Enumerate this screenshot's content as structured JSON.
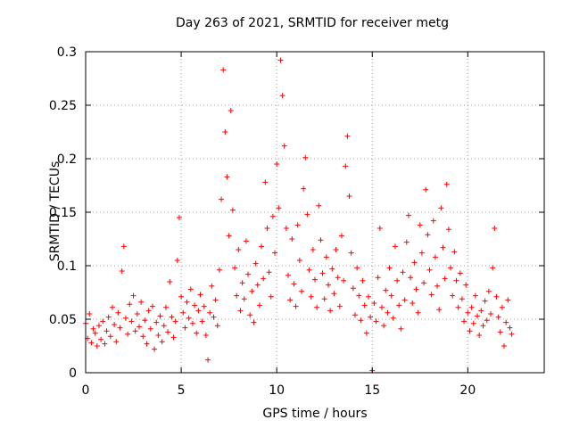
{
  "chart_data": {
    "type": "scatter",
    "title": "Day 263 of 2021, SRMTID for receiver metg",
    "xlabel": "GPS time / hours",
    "ylabel": "SRMTID / TECUs",
    "xlim": [
      0,
      24
    ],
    "ylim": [
      0,
      0.3
    ],
    "x_ticks": [
      0,
      5,
      10,
      15,
      20
    ],
    "x_tick_labels": [
      "0",
      "5",
      "10",
      "15",
      "20"
    ],
    "y_ticks": [
      0,
      0.05,
      0.1,
      0.15,
      0.2,
      0.25,
      0.3
    ],
    "y_tick_labels": [
      "0",
      "0.05",
      "0.1",
      "0.15",
      "0.2",
      "0.25",
      "0.3"
    ],
    "grid": true,
    "marker": "+",
    "color": "#ff0000",
    "series": [
      {
        "name": "SRMTID",
        "points": [
          [
            0.0,
            0.046
          ],
          [
            0.1,
            0.032
          ],
          [
            0.2,
            0.055
          ],
          [
            0.3,
            0.028
          ],
          [
            0.4,
            0.041
          ],
          [
            0.5,
            0.037
          ],
          [
            0.6,
            0.025
          ],
          [
            0.7,
            0.044
          ],
          [
            0.8,
            0.031
          ],
          [
            0.9,
            0.048
          ],
          [
            1.0,
            0.027
          ],
          [
            1.1,
            0.039
          ],
          [
            1.2,
            0.052
          ],
          [
            1.3,
            0.034
          ],
          [
            1.4,
            0.061
          ],
          [
            1.5,
            0.045
          ],
          [
            1.6,
            0.029
          ],
          [
            1.7,
            0.056
          ],
          [
            1.8,
            0.042
          ],
          [
            1.9,
            0.095
          ],
          [
            2.0,
            0.118
          ],
          [
            2.1,
            0.051
          ],
          [
            2.2,
            0.036
          ],
          [
            2.3,
            0.064
          ],
          [
            2.4,
            0.048
          ],
          [
            2.5,
            0.072
          ],
          [
            2.6,
            0.039
          ],
          [
            2.7,
            0.055
          ],
          [
            2.8,
            0.043
          ],
          [
            2.9,
            0.066
          ],
          [
            3.0,
            0.034
          ],
          [
            3.1,
            0.049
          ],
          [
            3.2,
            0.027
          ],
          [
            3.3,
            0.058
          ],
          [
            3.4,
            0.041
          ],
          [
            3.5,
            0.062
          ],
          [
            3.6,
            0.022
          ],
          [
            3.7,
            0.047
          ],
          [
            3.8,
            0.035
          ],
          [
            3.9,
            0.053
          ],
          [
            4.0,
            0.029
          ],
          [
            4.1,
            0.044
          ],
          [
            4.2,
            0.061
          ],
          [
            4.3,
            0.038
          ],
          [
            4.4,
            0.085
          ],
          [
            4.5,
            0.052
          ],
          [
            4.6,
            0.033
          ],
          [
            4.7,
            0.048
          ],
          [
            4.8,
            0.105
          ],
          [
            4.9,
            0.145
          ],
          [
            5.0,
            0.071
          ],
          [
            5.1,
            0.056
          ],
          [
            5.2,
            0.042
          ],
          [
            5.3,
            0.066
          ],
          [
            5.4,
            0.051
          ],
          [
            5.5,
            0.078
          ],
          [
            5.6,
            0.046
          ],
          [
            5.7,
            0.063
          ],
          [
            5.8,
            0.037
          ],
          [
            5.9,
            0.058
          ],
          [
            6.0,
            0.073
          ],
          [
            6.1,
            0.048
          ],
          [
            6.2,
            0.062
          ],
          [
            6.3,
            0.035
          ],
          [
            6.4,
            0.012
          ],
          [
            6.5,
            0.056
          ],
          [
            6.6,
            0.081
          ],
          [
            6.7,
            0.052
          ],
          [
            6.8,
            0.068
          ],
          [
            6.9,
            0.044
          ],
          [
            7.0,
            0.096
          ],
          [
            7.1,
            0.162
          ],
          [
            7.2,
            0.283
          ],
          [
            7.3,
            0.225
          ],
          [
            7.4,
            0.183
          ],
          [
            7.5,
            0.128
          ],
          [
            7.6,
            0.245
          ],
          [
            7.7,
            0.152
          ],
          [
            7.8,
            0.098
          ],
          [
            7.9,
            0.072
          ],
          [
            8.0,
            0.115
          ],
          [
            8.1,
            0.058
          ],
          [
            8.2,
            0.084
          ],
          [
            8.3,
            0.069
          ],
          [
            8.4,
            0.123
          ],
          [
            8.5,
            0.092
          ],
          [
            8.6,
            0.054
          ],
          [
            8.7,
            0.076
          ],
          [
            8.8,
            0.047
          ],
          [
            8.9,
            0.102
          ],
          [
            9.0,
            0.082
          ],
          [
            9.1,
            0.063
          ],
          [
            9.2,
            0.118
          ],
          [
            9.3,
            0.088
          ],
          [
            9.4,
            0.178
          ],
          [
            9.5,
            0.135
          ],
          [
            9.6,
            0.094
          ],
          [
            9.7,
            0.071
          ],
          [
            9.8,
            0.146
          ],
          [
            9.9,
            0.112
          ],
          [
            10.0,
            0.195
          ],
          [
            10.1,
            0.154
          ],
          [
            10.2,
            0.292
          ],
          [
            10.3,
            0.259
          ],
          [
            10.4,
            0.212
          ],
          [
            10.5,
            0.135
          ],
          [
            10.6,
            0.091
          ],
          [
            10.7,
            0.068
          ],
          [
            10.8,
            0.125
          ],
          [
            10.9,
            0.083
          ],
          [
            11.0,
            0.062
          ],
          [
            11.1,
            0.138
          ],
          [
            11.2,
            0.105
          ],
          [
            11.3,
            0.076
          ],
          [
            11.4,
            0.172
          ],
          [
            11.5,
            0.201
          ],
          [
            11.6,
            0.148
          ],
          [
            11.7,
            0.096
          ],
          [
            11.8,
            0.071
          ],
          [
            11.9,
            0.115
          ],
          [
            12.0,
            0.087
          ],
          [
            12.1,
            0.061
          ],
          [
            12.2,
            0.156
          ],
          [
            12.3,
            0.124
          ],
          [
            12.4,
            0.093
          ],
          [
            12.5,
            0.069
          ],
          [
            12.6,
            0.108
          ],
          [
            12.7,
            0.082
          ],
          [
            12.8,
            0.058
          ],
          [
            12.9,
            0.097
          ],
          [
            13.0,
            0.074
          ],
          [
            13.1,
            0.115
          ],
          [
            13.2,
            0.089
          ],
          [
            13.3,
            0.062
          ],
          [
            13.4,
            0.128
          ],
          [
            13.5,
            0.086
          ],
          [
            13.6,
            0.193
          ],
          [
            13.7,
            0.221
          ],
          [
            13.8,
            0.165
          ],
          [
            13.9,
            0.112
          ],
          [
            14.0,
            0.079
          ],
          [
            14.1,
            0.054
          ],
          [
            14.2,
            0.098
          ],
          [
            14.3,
            0.072
          ],
          [
            14.4,
            0.049
          ],
          [
            14.5,
            0.086
          ],
          [
            14.6,
            0.063
          ],
          [
            14.7,
            0.037
          ],
          [
            14.8,
            0.071
          ],
          [
            14.9,
            0.052
          ],
          [
            15.0,
            0.002
          ],
          [
            15.1,
            0.065
          ],
          [
            15.2,
            0.048
          ],
          [
            15.3,
            0.089
          ],
          [
            15.4,
            0.135
          ],
          [
            15.5,
            0.061
          ],
          [
            15.6,
            0.044
          ],
          [
            15.7,
            0.077
          ],
          [
            15.8,
            0.056
          ],
          [
            15.9,
            0.098
          ],
          [
            16.0,
            0.072
          ],
          [
            16.1,
            0.051
          ],
          [
            16.2,
            0.118
          ],
          [
            16.3,
            0.086
          ],
          [
            16.4,
            0.063
          ],
          [
            16.5,
            0.041
          ],
          [
            16.6,
            0.094
          ],
          [
            16.7,
            0.068
          ],
          [
            16.8,
            0.122
          ],
          [
            16.9,
            0.147
          ],
          [
            17.0,
            0.089
          ],
          [
            17.1,
            0.065
          ],
          [
            17.2,
            0.103
          ],
          [
            17.3,
            0.078
          ],
          [
            17.4,
            0.056
          ],
          [
            17.5,
            0.138
          ],
          [
            17.6,
            0.112
          ],
          [
            17.7,
            0.084
          ],
          [
            17.8,
            0.171
          ],
          [
            17.9,
            0.129
          ],
          [
            18.0,
            0.096
          ],
          [
            18.1,
            0.073
          ],
          [
            18.2,
            0.142
          ],
          [
            18.3,
            0.108
          ],
          [
            18.4,
            0.081
          ],
          [
            18.5,
            0.059
          ],
          [
            18.6,
            0.154
          ],
          [
            18.7,
            0.117
          ],
          [
            18.8,
            0.088
          ],
          [
            18.9,
            0.176
          ],
          [
            19.0,
            0.134
          ],
          [
            19.1,
            0.098
          ],
          [
            19.2,
            0.072
          ],
          [
            19.3,
            0.113
          ],
          [
            19.4,
            0.086
          ],
          [
            19.5,
            0.061
          ],
          [
            19.6,
            0.093
          ],
          [
            19.7,
            0.069
          ],
          [
            19.8,
            0.048
          ],
          [
            19.9,
            0.082
          ],
          [
            20.0,
            0.056
          ],
          [
            20.1,
            0.039
          ],
          [
            20.2,
            0.061
          ],
          [
            20.3,
            0.046
          ],
          [
            20.4,
            0.072
          ],
          [
            20.5,
            0.053
          ],
          [
            20.6,
            0.035
          ],
          [
            20.7,
            0.058
          ],
          [
            20.8,
            0.044
          ],
          [
            20.9,
            0.067
          ],
          [
            21.0,
            0.049
          ],
          [
            21.1,
            0.076
          ],
          [
            21.2,
            0.055
          ],
          [
            21.3,
            0.098
          ],
          [
            21.4,
            0.135
          ],
          [
            21.5,
            0.071
          ],
          [
            21.6,
            0.052
          ],
          [
            21.7,
            0.038
          ],
          [
            21.8,
            0.061
          ],
          [
            21.9,
            0.025
          ],
          [
            22.0,
            0.047
          ],
          [
            22.1,
            0.068
          ],
          [
            22.2,
            0.042
          ],
          [
            22.3,
            0.036
          ]
        ]
      }
    ]
  }
}
